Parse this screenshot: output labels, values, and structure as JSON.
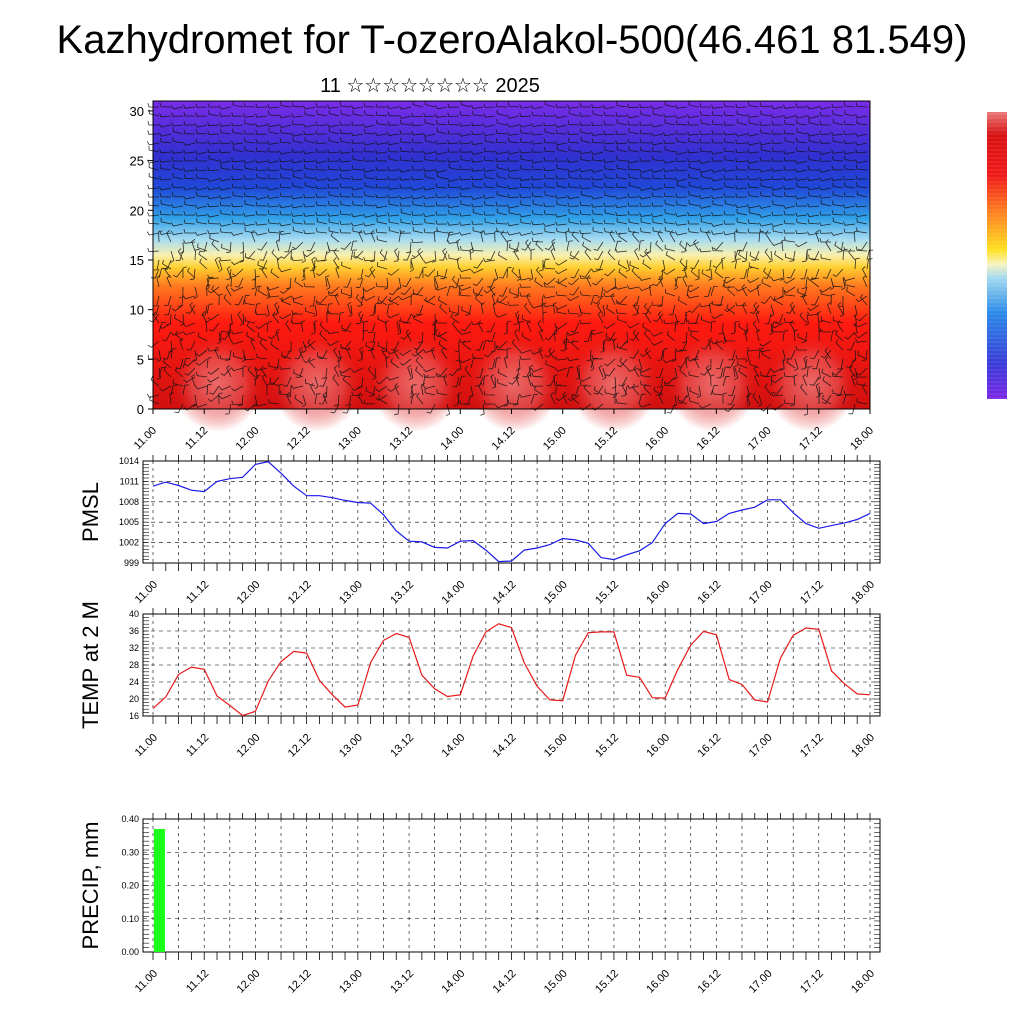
{
  "header": {
    "title": "Kazhydromet for T-ozeroAlakol-500(46.461 81.549)",
    "subtitle": "11 ☆☆☆☆☆☆☆☆ 2025"
  },
  "chart_data": [
    {
      "type": "heatmap",
      "name": "cross-section",
      "x_ticks": [
        "11.00",
        "11.12",
        "12.00",
        "12.12",
        "13.00",
        "13.12",
        "14.00",
        "14.12",
        "15.00",
        "15.12",
        "16.00",
        "16.12",
        "17.00",
        "17.12",
        "18.00"
      ],
      "y_ticks": [
        0,
        5,
        10,
        15,
        20,
        25,
        30
      ],
      "ylim": [
        0,
        31
      ],
      "colorbar": [
        "#7a28e6",
        "#3a3ad8",
        "#2a8ae8",
        "#6ad0f0",
        "#f8f4c0",
        "#ffe020",
        "#ff8020",
        "#f01818",
        "#d81010",
        "#e87878"
      ],
      "wind_barbs": true
    },
    {
      "type": "line",
      "ylabel": "PMSL",
      "color": "#1a1ae6",
      "ylim": [
        999,
        1014
      ],
      "y_ticks": [
        999,
        1002,
        1005,
        1008,
        1011,
        1014
      ],
      "x_ticks": [
        "11.00",
        "11.12",
        "12.00",
        "12.12",
        "13.00",
        "13.12",
        "14.00",
        "14.12",
        "15.00",
        "15.12",
        "16.00",
        "16.12",
        "17.00",
        "17.12",
        "18.00"
      ],
      "x_step_hours": 3,
      "values": [
        1010.3,
        1010.9,
        1010.4,
        1009.7,
        1009.5,
        1011.0,
        1011.4,
        1011.6,
        1013.5,
        1013.9,
        1012.2,
        1010.3,
        1008.9,
        1008.9,
        1008.6,
        1008.2,
        1007.9,
        1007.8,
        1006.1,
        1003.7,
        1002.2,
        1002.1,
        1001.3,
        1001.2,
        1002.2,
        1002.3,
        1000.9,
        999.2,
        999.3,
        1000.9,
        1001.2,
        1001.7,
        1002.6,
        1002.4,
        1001.9,
        999.8,
        999.5,
        1000.2,
        1000.8,
        1002.0,
        1004.8,
        1006.3,
        1006.2,
        1004.8,
        1005.1,
        1006.3,
        1006.8,
        1007.2,
        1008.3,
        1008.3,
        1006.4,
        1004.8,
        1004.1,
        1004.5,
        1004.9,
        1005.4,
        1006.3
      ]
    },
    {
      "type": "line",
      "ylabel": "TEMP at 2 M",
      "color": "#e61a1a",
      "ylim": [
        16,
        40
      ],
      "y_ticks": [
        16,
        20,
        24,
        28,
        32,
        36,
        40
      ],
      "x_ticks": [
        "11.00",
        "11.12",
        "12.00",
        "12.12",
        "13.00",
        "13.12",
        "14.00",
        "14.12",
        "15.00",
        "15.12",
        "16.00",
        "16.12",
        "17.00",
        "17.12",
        "18.00"
      ],
      "x_step_hours": 3,
      "values": [
        17.8,
        20.5,
        25.8,
        27.5,
        27.0,
        20.7,
        18.5,
        16.1,
        17.1,
        24.2,
        28.8,
        31.2,
        30.8,
        24.4,
        21.0,
        18.1,
        18.6,
        28.6,
        33.8,
        35.4,
        34.5,
        25.6,
        22.4,
        20.6,
        21.0,
        30.1,
        35.8,
        37.7,
        36.8,
        28.5,
        23.0,
        19.8,
        19.6,
        30.3,
        35.6,
        35.8,
        35.8,
        25.6,
        25.1,
        20.3,
        20.2,
        27.0,
        32.7,
        35.9,
        35.1,
        24.6,
        23.4,
        19.8,
        19.3,
        29.6,
        35.0,
        36.7,
        36.4,
        26.6,
        23.6,
        21.2,
        21.0
      ]
    },
    {
      "type": "bar",
      "ylabel": "PRECIP, mm",
      "color": "#19ff19",
      "ylim": [
        0,
        0.4
      ],
      "y_ticks": [
        "0.00",
        "0.10",
        "0.20",
        "0.30",
        "0.40"
      ],
      "x_ticks": [
        "11.00",
        "11.12",
        "12.00",
        "12.12",
        "13.00",
        "13.12",
        "14.00",
        "14.12",
        "15.00",
        "15.12",
        "16.00",
        "16.12",
        "17.00",
        "17.12",
        "18.00"
      ],
      "x_step_hours": 3,
      "values": [
        0.37
      ]
    }
  ]
}
